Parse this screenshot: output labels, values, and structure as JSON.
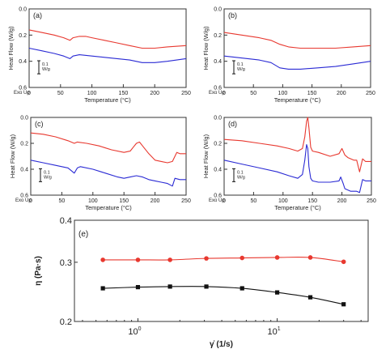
{
  "chart_data": [
    {
      "type": "line",
      "panel_label": "(a)",
      "xlabel": "Temperature (°C)",
      "ylabel": "Heat Flow (W/g)",
      "exo_label": "Exo Up",
      "scale_bar_label": [
        "0.1",
        "W/g"
      ],
      "scale_bar_value": 0.1,
      "xlim": [
        0,
        250
      ],
      "ylim": [
        -0.6,
        0.0
      ],
      "xticks": [
        0,
        50,
        100,
        150,
        200,
        250
      ],
      "yticks": [
        0.0,
        -0.2,
        -0.4,
        -0.6
      ],
      "ytick_labels": [
        "0.0",
        "0.2",
        "0.4",
        "0.6"
      ],
      "series": [
        {
          "color": "#e8382f",
          "x": [
            0,
            20,
            40,
            55,
            65,
            70,
            80,
            90,
            100,
            120,
            140,
            160,
            180,
            200,
            220,
            250
          ],
          "y": [
            -0.16,
            -0.18,
            -0.2,
            -0.22,
            -0.24,
            -0.22,
            -0.21,
            -0.21,
            -0.22,
            -0.24,
            -0.26,
            -0.28,
            -0.3,
            -0.3,
            -0.29,
            -0.28
          ]
        },
        {
          "color": "#2a2ad4",
          "x": [
            0,
            20,
            40,
            55,
            65,
            70,
            80,
            100,
            120,
            140,
            160,
            180,
            200,
            220,
            250
          ],
          "y": [
            -0.3,
            -0.32,
            -0.34,
            -0.36,
            -0.38,
            -0.36,
            -0.35,
            -0.36,
            -0.37,
            -0.38,
            -0.39,
            -0.41,
            -0.41,
            -0.4,
            -0.38
          ]
        }
      ]
    },
    {
      "type": "line",
      "panel_label": "(b)",
      "xlabel": "Temperature (°C)",
      "ylabel": "Heat Flow (W/g)",
      "exo_label": "Exo Up",
      "scale_bar_label": [
        "0.1",
        "W/g"
      ],
      "scale_bar_value": 0.1,
      "xlim": [
        0,
        250
      ],
      "ylim": [
        -0.6,
        0.0
      ],
      "xticks": [
        0,
        50,
        100,
        150,
        200,
        250
      ],
      "yticks": [
        0.0,
        -0.2,
        -0.4,
        -0.6
      ],
      "ytick_labels": [
        "0.0",
        "0.2",
        "0.4",
        "0.6"
      ],
      "series": [
        {
          "color": "#e8382f",
          "x": [
            0,
            30,
            60,
            80,
            95,
            110,
            130,
            160,
            190,
            220,
            250
          ],
          "y": [
            -0.18,
            -0.2,
            -0.22,
            -0.24,
            -0.27,
            -0.29,
            -0.3,
            -0.3,
            -0.3,
            -0.29,
            -0.28
          ]
        },
        {
          "color": "#2a2ad4",
          "x": [
            0,
            20,
            40,
            60,
            80,
            95,
            110,
            130,
            160,
            190,
            220,
            250
          ],
          "y": [
            -0.36,
            -0.37,
            -0.38,
            -0.39,
            -0.41,
            -0.45,
            -0.46,
            -0.46,
            -0.45,
            -0.44,
            -0.42,
            -0.4
          ]
        }
      ]
    },
    {
      "type": "line",
      "panel_label": "(c)",
      "xlabel": "Temperature (°C)",
      "ylabel": "Heat Flow (W/g)",
      "exo_label": "Exo Up",
      "scale_bar_label": [
        "0.1",
        "W/g"
      ],
      "scale_bar_value": 0.1,
      "xlim": [
        0,
        250
      ],
      "ylim": [
        -0.6,
        0.0
      ],
      "xticks": [
        0,
        50,
        100,
        150,
        200,
        250
      ],
      "yticks": [
        0.0,
        -0.2,
        -0.4,
        -0.6
      ],
      "ytick_labels": [
        "0.0",
        "0.2",
        "0.4",
        "0.6"
      ],
      "series": [
        {
          "color": "#e8382f",
          "x": [
            0,
            20,
            40,
            60,
            70,
            75,
            90,
            110,
            130,
            150,
            160,
            165,
            170,
            175,
            180,
            190,
            200,
            210,
            220,
            228,
            235,
            240,
            250
          ],
          "y": [
            -0.12,
            -0.13,
            -0.15,
            -0.18,
            -0.2,
            -0.19,
            -0.2,
            -0.22,
            -0.25,
            -0.27,
            -0.26,
            -0.23,
            -0.2,
            -0.19,
            -0.22,
            -0.28,
            -0.33,
            -0.34,
            -0.35,
            -0.34,
            -0.27,
            -0.28,
            -0.28
          ]
        },
        {
          "color": "#2a2ad4",
          "x": [
            0,
            20,
            40,
            60,
            70,
            75,
            80,
            100,
            120,
            140,
            150,
            160,
            170,
            180,
            190,
            200,
            210,
            220,
            228,
            232,
            240,
            250
          ],
          "y": [
            -0.33,
            -0.35,
            -0.37,
            -0.39,
            -0.43,
            -0.39,
            -0.38,
            -0.4,
            -0.43,
            -0.46,
            -0.47,
            -0.46,
            -0.45,
            -0.46,
            -0.48,
            -0.49,
            -0.5,
            -0.51,
            -0.53,
            -0.47,
            -0.48,
            -0.48
          ]
        }
      ]
    },
    {
      "type": "line",
      "panel_label": "(d)",
      "xlabel": "Temperature (°C)",
      "ylabel": "Heat Flow (W/g)",
      "exo_label": "Exo Up",
      "scale_bar_label": [
        "0.1",
        "W/g"
      ],
      "scale_bar_value": 0.1,
      "xlim": [
        0,
        250
      ],
      "ylim": [
        -0.6,
        0.0
      ],
      "xticks": [
        0,
        50,
        100,
        150,
        200,
        250
      ],
      "yticks": [
        0.0,
        -0.2,
        -0.4,
        -0.6
      ],
      "ytick_labels": [
        "0.0",
        "0.2",
        "0.4",
        "0.6"
      ],
      "series": [
        {
          "color": "#e8382f",
          "x": [
            0,
            30,
            60,
            90,
            110,
            125,
            133,
            137,
            140,
            142,
            144,
            147,
            150,
            160,
            180,
            195,
            200,
            205,
            210,
            220,
            225,
            230,
            235,
            240,
            250
          ],
          "y": [
            -0.17,
            -0.18,
            -0.2,
            -0.22,
            -0.24,
            -0.26,
            -0.24,
            -0.15,
            -0.03,
            0.0,
            -0.08,
            -0.23,
            -0.26,
            -0.27,
            -0.3,
            -0.28,
            -0.24,
            -0.29,
            -0.31,
            -0.33,
            -0.33,
            -0.42,
            -0.32,
            -0.34,
            -0.34
          ]
        },
        {
          "color": "#2a2ad4",
          "x": [
            0,
            30,
            60,
            90,
            110,
            125,
            133,
            137,
            140,
            142,
            144,
            147,
            150,
            160,
            180,
            195,
            198,
            202,
            205,
            215,
            225,
            230,
            235,
            240,
            250
          ],
          "y": [
            -0.33,
            -0.36,
            -0.39,
            -0.42,
            -0.45,
            -0.47,
            -0.44,
            -0.33,
            -0.21,
            -0.24,
            -0.38,
            -0.47,
            -0.49,
            -0.5,
            -0.5,
            -0.49,
            -0.46,
            -0.51,
            -0.55,
            -0.57,
            -0.57,
            -0.58,
            -0.48,
            -0.49,
            -0.49
          ]
        }
      ]
    },
    {
      "type": "line",
      "panel_label": "(e)",
      "xlabel": "γ̇ (1/s)",
      "ylabel": "η (Pa·s)",
      "xscale": "log",
      "yscale": "log",
      "xlim": [
        0.35,
        45
      ],
      "ylim": [
        0.2,
        0.4
      ],
      "xticks": [
        1,
        10
      ],
      "xtick_labels": [
        [
          "10",
          "0"
        ],
        [
          "10",
          "1"
        ]
      ],
      "yticks": [
        0.2,
        0.3,
        0.4
      ],
      "ytick_labels": [
        "0.2",
        "0.3",
        "0.4"
      ],
      "series": [
        {
          "color": "#e8382f",
          "marker": "circle",
          "x": [
            0.56,
            1.0,
            1.7,
            3.1,
            5.6,
            10.0,
            17.3,
            30.0
          ],
          "y": [
            0.305,
            0.305,
            0.305,
            0.308,
            0.309,
            0.31,
            0.31,
            0.301
          ]
        },
        {
          "color": "#111111",
          "marker": "square",
          "x": [
            0.56,
            1.0,
            1.7,
            3.1,
            5.6,
            10.0,
            17.3,
            30.0
          ],
          "y": [
            0.251,
            0.253,
            0.254,
            0.254,
            0.251,
            0.244,
            0.236,
            0.225
          ]
        }
      ]
    }
  ]
}
